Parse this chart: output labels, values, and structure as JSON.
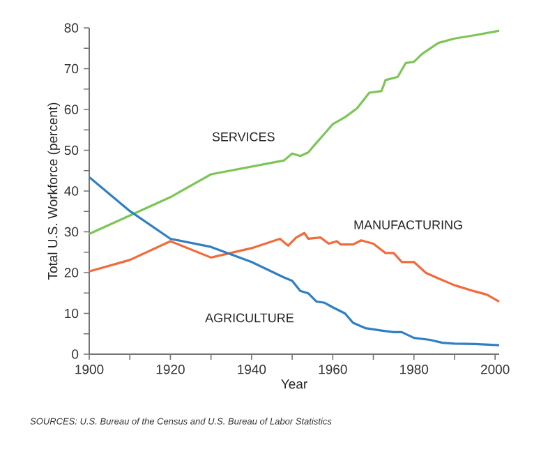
{
  "chart_data": {
    "type": "line",
    "xlabel": "Year",
    "ylabel": "Total U.S. Workforce (percent)",
    "xlim": [
      1900,
      2001
    ],
    "ylim": [
      0,
      80
    ],
    "xticks": [
      1900,
      {
        "value": 1910,
        "label": null
      },
      1920,
      {
        "value": 1930,
        "label": null
      },
      1940,
      {
        "value": 1950,
        "label": null
      },
      1960,
      {
        "value": 1970,
        "label": null
      },
      1980,
      {
        "value": 1990,
        "label": null
      },
      2000
    ],
    "yticks": [
      0,
      {
        "value": 5,
        "label": null
      },
      10,
      {
        "value": 15,
        "label": null
      },
      20,
      {
        "value": 25,
        "label": null
      },
      30,
      {
        "value": 35,
        "label": null
      },
      40,
      {
        "value": 45,
        "label": null
      },
      50,
      {
        "value": 55,
        "label": null
      },
      60,
      {
        "value": 65,
        "label": null
      },
      70,
      {
        "value": 75,
        "label": null
      },
      80
    ],
    "grid": false,
    "legend": false,
    "series": [
      {
        "name": "SERVICES",
        "color": "#7dc556",
        "x": [
          1900,
          1920,
          1930,
          1948,
          1950,
          1952,
          1954,
          1955,
          1958,
          1960,
          1963,
          1966,
          1969,
          1972,
          1973,
          1976,
          1978,
          1980,
          1982,
          1986,
          1990,
          1995,
          2001
        ],
        "values": [
          29.5,
          38.5,
          44.1,
          47.5,
          49.2,
          48.6,
          49.5,
          50.7,
          54.1,
          56.4,
          58.1,
          60.3,
          64.1,
          64.5,
          67.2,
          68.0,
          71.4,
          71.7,
          73.6,
          76.3,
          77.4,
          78.2,
          79.3
        ]
      },
      {
        "name": "MANUFACTURING",
        "color": "#f26a3a",
        "x": [
          1900,
          1910,
          1920,
          1930,
          1940,
          1947,
          1949,
          1951,
          1953,
          1954,
          1957,
          1959,
          1961,
          1962,
          1965,
          1967,
          1970,
          1973,
          1975,
          1977,
          1980,
          1983,
          1986,
          1990,
          1995,
          1998,
          2001
        ],
        "values": [
          20.3,
          23.1,
          27.7,
          23.7,
          26.0,
          28.3,
          26.6,
          28.6,
          29.7,
          28.3,
          28.6,
          27.1,
          27.7,
          26.9,
          26.9,
          27.9,
          27.1,
          24.8,
          24.8,
          22.6,
          22.6,
          19.9,
          18.6,
          16.9,
          15.4,
          14.6,
          12.9
        ]
      },
      {
        "name": "AGRICULTURE",
        "color": "#2f7fc4",
        "x": [
          1900,
          1910,
          1920,
          1930,
          1940,
          1948,
          1950,
          1952,
          1954,
          1956,
          1958,
          1960,
          1963,
          1965,
          1968,
          1972,
          1975,
          1977,
          1980,
          1984,
          1987,
          1990,
          1995,
          2001
        ],
        "values": [
          43.4,
          35.1,
          28.3,
          26.3,
          22.6,
          18.8,
          18.0,
          15.5,
          14.9,
          12.9,
          12.6,
          11.5,
          10.0,
          7.7,
          6.4,
          5.8,
          5.4,
          5.4,
          4.0,
          3.5,
          2.8,
          2.6,
          2.5,
          2.2
        ]
      }
    ],
    "annotations": [
      "SOURCES: U.S. Bureau of the Census and U.S. Bureau of Labor Statistics"
    ]
  }
}
